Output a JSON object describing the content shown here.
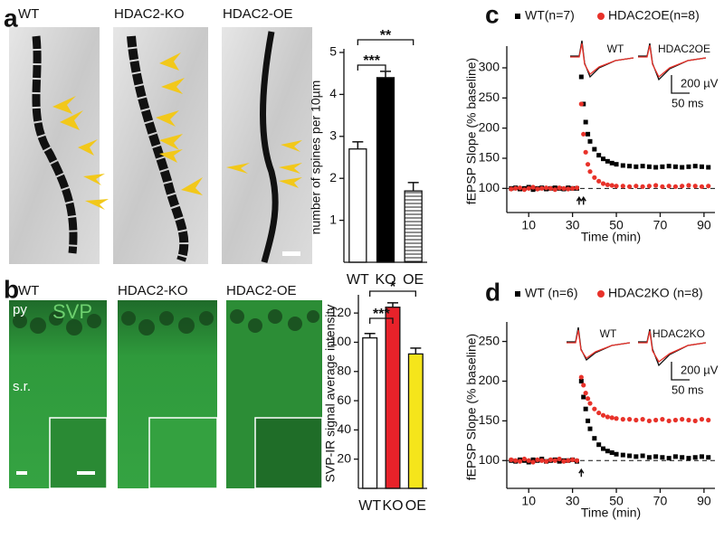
{
  "panel_labels": [
    "a",
    "b",
    "c",
    "d"
  ],
  "images_a": [
    "WT",
    "HDAC2-KO",
    "HDAC2-OE"
  ],
  "images_b": {
    "labels": [
      "WT",
      "HDAC2-KO",
      "HDAC2-OE"
    ],
    "layers": [
      "py",
      "SVP",
      "s.r."
    ]
  },
  "chart_data": [
    {
      "type": "bar",
      "ylabel": "number of spines per 10µm",
      "categories": [
        "WT",
        "KO",
        "OE"
      ],
      "values": [
        2.7,
        4.4,
        1.7
      ],
      "errors": [
        0.17,
        0.15,
        0.2
      ],
      "colors": [
        "#ffffff",
        "#000000",
        "#ffffff"
      ],
      "hatch": [
        false,
        false,
        true
      ],
      "ylim": [
        0,
        5
      ],
      "yticks": [
        1,
        2,
        3,
        4,
        5
      ],
      "brackets": [
        {
          "label": "***",
          "pair": [
            0,
            1
          ]
        },
        {
          "label": "**",
          "pair": [
            0,
            2
          ]
        }
      ]
    },
    {
      "type": "bar",
      "ylabel": "SVP-IR signal average intensity",
      "categories": [
        "WT",
        "KO",
        "OE"
      ],
      "values": [
        103,
        124,
        92
      ],
      "errors": [
        3,
        3,
        4
      ],
      "colors": [
        "#ffffff",
        "#e8222a",
        "#f5e51b"
      ],
      "hatch": [
        false,
        false,
        false
      ],
      "ylim": [
        0,
        130
      ],
      "yticks": [
        20,
        40,
        60,
        80,
        100,
        120
      ],
      "brackets": [
        {
          "label": "***",
          "pair": [
            0,
            1
          ]
        },
        {
          "label": "*",
          "pair": [
            0,
            2
          ]
        }
      ]
    },
    {
      "type": "scatter",
      "xlabel": "Time (min)",
      "ylabel": "fEPSP Slope (% baseline)",
      "x": [
        2,
        4,
        6,
        8,
        10,
        12,
        14,
        16,
        18,
        20,
        22,
        24,
        26,
        28,
        30,
        32,
        34,
        35,
        36,
        37,
        38,
        40,
        42,
        44,
        46,
        48,
        50,
        53,
        56,
        59,
        62,
        65,
        68,
        71,
        74,
        77,
        80,
        83,
        86,
        89,
        92
      ],
      "series": [
        {
          "name": "WT(n=7)",
          "color": "#000000",
          "marker": "square",
          "values": [
            100,
            101,
            99,
            100,
            102,
            98,
            100,
            101,
            99,
            100,
            101,
            100,
            99,
            101,
            100,
            100,
            285,
            240,
            210,
            190,
            178,
            165,
            155,
            149,
            145,
            142,
            140,
            138,
            137,
            136,
            137,
            136,
            135,
            136,
            137,
            136,
            135,
            136,
            137,
            136,
            135
          ]
        },
        {
          "name": "HDAC2OE(n=8)",
          "color": "#e8322a",
          "marker": "circle",
          "values": [
            99,
            100,
            101,
            98,
            100,
            102,
            99,
            100,
            101,
            100,
            98,
            101,
            100,
            99,
            100,
            101,
            240,
            190,
            160,
            140,
            128,
            118,
            112,
            108,
            106,
            105,
            104,
            104,
            103,
            104,
            103,
            104,
            105,
            103,
            104,
            103,
            104,
            105,
            104,
            103,
            104
          ]
        }
      ],
      "xlim": [
        0,
        95
      ],
      "xticks": [
        10,
        30,
        50,
        70,
        90
      ],
      "ylim": [
        60,
        330
      ],
      "yticks": [
        100,
        150,
        200,
        250,
        300
      ],
      "reference_line": 100,
      "stimulus_x": [
        33,
        35
      ],
      "inset_labels": [
        "WT",
        "HDAC2OE"
      ],
      "scale_labels": [
        "200 µV",
        "50 ms"
      ]
    },
    {
      "type": "scatter",
      "xlabel": "Time (min)",
      "ylabel": "fEPSP Slope (% baseline)",
      "x": [
        2,
        4,
        6,
        8,
        10,
        12,
        14,
        16,
        18,
        20,
        22,
        24,
        26,
        28,
        30,
        32,
        34,
        35,
        36,
        37,
        38,
        40,
        42,
        44,
        46,
        48,
        50,
        53,
        56,
        59,
        62,
        65,
        68,
        71,
        74,
        77,
        80,
        83,
        86,
        89,
        92
      ],
      "series": [
        {
          "name": "WT (n=6)",
          "color": "#000000",
          "marker": "square",
          "values": [
            100,
            99,
            101,
            100,
            98,
            101,
            100,
            102,
            99,
            100,
            101,
            99,
            100,
            100,
            101,
            99,
            200,
            180,
            165,
            150,
            140,
            128,
            120,
            115,
            112,
            110,
            108,
            107,
            106,
            105,
            106,
            104,
            105,
            104,
            103,
            105,
            104,
            103,
            104,
            105,
            104
          ]
        },
        {
          "name": "HDAC2KO (n=8)",
          "color": "#e8322a",
          "marker": "circle",
          "values": [
            101,
            100,
            99,
            102,
            100,
            98,
            101,
            100,
            99,
            101,
            100,
            102,
            99,
            100,
            101,
            100,
            205,
            195,
            185,
            178,
            172,
            165,
            160,
            157,
            155,
            154,
            153,
            152,
            152,
            151,
            152,
            150,
            151,
            152,
            150,
            151,
            152,
            151,
            150,
            152,
            151
          ]
        }
      ],
      "xlim": [
        0,
        95
      ],
      "xticks": [
        10,
        30,
        50,
        70,
        90
      ],
      "ylim": [
        65,
        270
      ],
      "yticks": [
        100,
        150,
        200,
        250
      ],
      "reference_line": 100,
      "stimulus_x": [
        34
      ],
      "inset_labels": [
        "WT",
        "HDAC2KO"
      ],
      "scale_labels": [
        "200 µV",
        "50 ms"
      ]
    }
  ]
}
